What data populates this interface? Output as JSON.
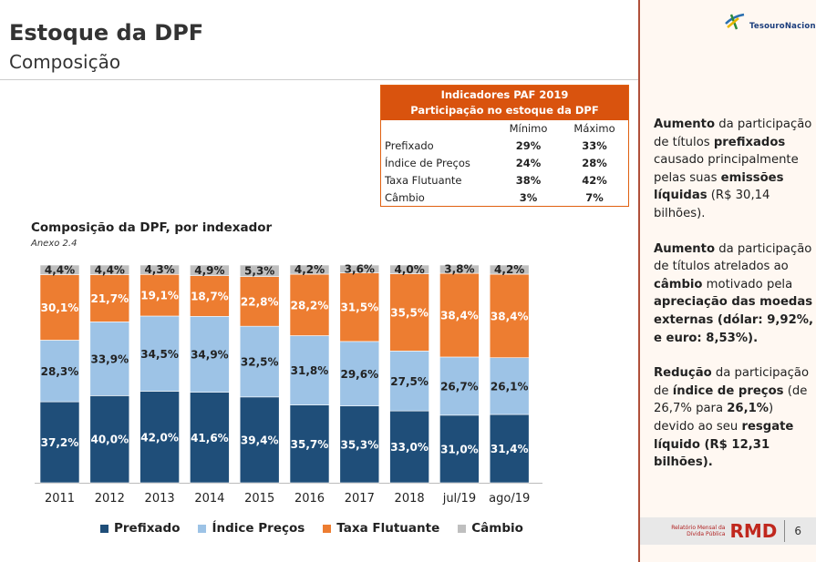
{
  "header": {
    "title": "Estoque da DPF",
    "subtitle": "Composição"
  },
  "paf_table": {
    "title1": "Indicadores PAF 2019",
    "title2": "Participação no estoque da DPF",
    "col_min": "Mínimo",
    "col_max": "Máximo",
    "rows": [
      {
        "label": "Prefixado",
        "min": "29%",
        "max": "33%"
      },
      {
        "label": "Índice de Preços",
        "min": "24%",
        "max": "28%"
      },
      {
        "label": "Taxa Flutuante",
        "min": "38%",
        "max": "42%"
      },
      {
        "label": "Câmbio",
        "min": "3%",
        "max": "7%"
      }
    ]
  },
  "chart_data": {
    "type": "bar",
    "stacked": true,
    "title": "Composição da DPF, por indexador",
    "subtitle": "Anexo 2.4",
    "categories": [
      "2011",
      "2012",
      "2013",
      "2014",
      "2015",
      "2016",
      "2017",
      "2018",
      "jul/19",
      "ago/19"
    ],
    "ylim": [
      0,
      100
    ],
    "grid": false,
    "legend_position": "bottom",
    "series": [
      {
        "name": "Prefixado",
        "color": "#1F4E79",
        "values": [
          37.2,
          40.0,
          42.0,
          41.6,
          39.4,
          35.7,
          35.3,
          33.0,
          31.0,
          31.4
        ],
        "labels": [
          "37,2%",
          "40,0%",
          "42,0%",
          "41,6%",
          "39,4%",
          "35,7%",
          "35,3%",
          "33,0%",
          "31,0%",
          "31,4%"
        ]
      },
      {
        "name": "Índice Preços",
        "color": "#9DC3E6",
        "values": [
          28.3,
          33.9,
          34.5,
          34.9,
          32.5,
          31.8,
          29.6,
          27.5,
          26.7,
          26.1
        ],
        "labels": [
          "28,3%",
          "33,9%",
          "34,5%",
          "34,9%",
          "32,5%",
          "31,8%",
          "29,6%",
          "27,5%",
          "26,7%",
          "26,1%"
        ]
      },
      {
        "name": "Taxa Flutuante",
        "color": "#ED7D31",
        "values": [
          30.1,
          21.7,
          19.1,
          18.7,
          22.8,
          28.2,
          31.5,
          35.5,
          38.4,
          38.4
        ],
        "labels": [
          "30,1%",
          "21,7%",
          "19,1%",
          "18,7%",
          "22,8%",
          "28,2%",
          "31,5%",
          "35,5%",
          "38,4%",
          "38,4%"
        ]
      },
      {
        "name": "Câmbio",
        "color": "#BFBFBF",
        "values": [
          4.4,
          4.4,
          4.3,
          4.9,
          5.3,
          4.2,
          3.6,
          4.0,
          3.8,
          4.2
        ],
        "labels": [
          "4,4%",
          "4,4%",
          "4,3%",
          "4,9%",
          "5,3%",
          "4,2%",
          "3,6%",
          "4,0%",
          "3,8%",
          "4,2%"
        ]
      }
    ]
  },
  "side": {
    "logo_text": "TesouroNacional",
    "footer_small1": "Relatório Mensal da",
    "footer_small2": "Dívida Pública",
    "footer_brand": "RMD",
    "page": "6",
    "notes": [
      [
        {
          "t": "Aumento",
          "b": true
        },
        {
          "t": " da participação de títulos "
        },
        {
          "t": "prefixados",
          "b": true
        },
        {
          "t": " causado principalmente pelas suas "
        },
        {
          "t": "emissões líquidas",
          "b": true
        },
        {
          "t": " (R$ 30,14 bilhões)."
        }
      ],
      [
        {
          "t": "Aumento",
          "b": true
        },
        {
          "t": " da participação de títulos atrelados ao "
        },
        {
          "t": "câmbio",
          "b": true
        },
        {
          "t": " motivado pela "
        },
        {
          "t": "apreciação das moedas externas (dólar: 9,92%, e euro: 8,53%).",
          "b": true
        }
      ],
      [
        {
          "t": "Redução",
          "b": true
        },
        {
          "t": " da participação de "
        },
        {
          "t": "índice de preços",
          "b": true
        },
        {
          "t": " (de 26,7% para "
        },
        {
          "t": "26,1%",
          "b": true
        },
        {
          "t": ") devido ao seu "
        },
        {
          "t": "resgate líquido",
          "b": true
        },
        {
          "t": " (R$ 12,31 bilhões).",
          "b": true
        }
      ]
    ]
  }
}
